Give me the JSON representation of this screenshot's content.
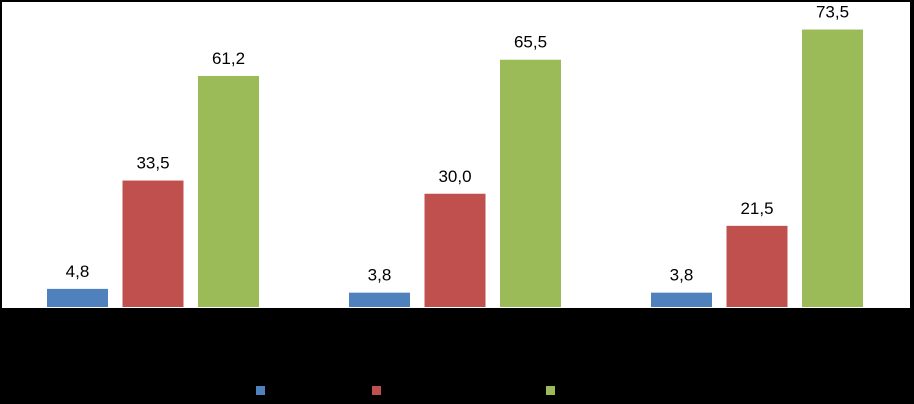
{
  "chart_data": {
    "type": "bar",
    "categories": [
      null,
      null,
      null
    ],
    "series": [
      {
        "color": "#4f81bd",
        "values": [
          4.8,
          3.8,
          3.8
        ],
        "value_labels": [
          "4,8",
          "3,8",
          "3,8"
        ]
      },
      {
        "color": "#c0504d",
        "values": [
          33.5,
          30.0,
          21.5
        ],
        "value_labels": [
          "33,5",
          "30,0",
          "21,5"
        ]
      },
      {
        "color": "#9bbb59",
        "values": [
          61.2,
          65.5,
          73.5
        ],
        "value_labels": [
          "61,2",
          "65,5",
          "73,5"
        ]
      }
    ],
    "ylim": [
      0,
      80
    ]
  }
}
